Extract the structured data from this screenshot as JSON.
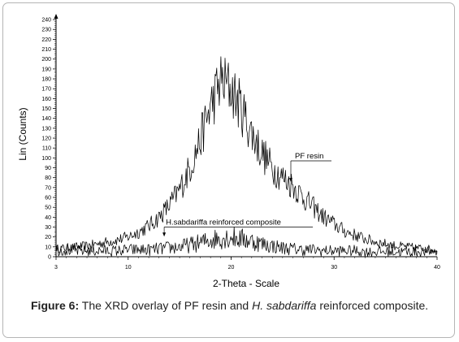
{
  "chart_data": {
    "type": "line",
    "title": "",
    "xlabel": "2-Theta - Scale",
    "ylabel": "Lin (Counts)",
    "xlim": [
      3,
      40
    ],
    "ylim": [
      0,
      245
    ],
    "x_ticks": [
      3,
      10,
      20,
      30,
      40
    ],
    "y_ticks": [
      0,
      10,
      20,
      30,
      40,
      50,
      60,
      70,
      80,
      90,
      100,
      110,
      120,
      130,
      140,
      150,
      160,
      170,
      180,
      190,
      200,
      210,
      220,
      230,
      240
    ],
    "grid": false,
    "series": [
      {
        "name": "PF resin",
        "color": "#000000",
        "x": [
          3,
          4,
          5,
          6,
          7,
          8,
          9,
          10,
          11,
          12,
          13,
          14,
          15,
          16,
          17,
          18,
          19,
          20,
          21,
          22,
          23,
          24,
          25,
          26,
          27,
          28,
          29,
          30,
          31,
          32,
          33,
          34,
          35,
          36,
          37,
          38,
          39,
          40
        ],
        "values": [
          8,
          9,
          10,
          11,
          13,
          15,
          17,
          20,
          25,
          31,
          40,
          52,
          68,
          90,
          118,
          152,
          178,
          170,
          150,
          125,
          105,
          90,
          80,
          72,
          60,
          50,
          40,
          33,
          26,
          22,
          18,
          15,
          13,
          11,
          10,
          9,
          8,
          7
        ]
      },
      {
        "name": "H.sabdariffa reinforced composite",
        "color": "#000000",
        "x": [
          3,
          4,
          5,
          6,
          7,
          8,
          9,
          10,
          11,
          12,
          13,
          14,
          15,
          16,
          17,
          18,
          19,
          20,
          21,
          22,
          23,
          24,
          25,
          26,
          27,
          28,
          29,
          30,
          31,
          32,
          33,
          34,
          35,
          36,
          37,
          38,
          39,
          40
        ],
        "values": [
          7,
          7,
          6,
          6,
          6,
          6,
          6,
          7,
          7,
          7,
          8,
          9,
          10,
          12,
          14,
          17,
          19,
          20,
          18,
          16,
          13,
          11,
          9,
          8,
          7,
          7,
          6,
          6,
          6,
          6,
          5,
          5,
          5,
          5,
          5,
          5,
          5,
          5
        ]
      }
    ],
    "annotations": [
      {
        "text": "PF resin",
        "x": 25.8,
        "y": 78
      },
      {
        "text": "H.sabdariffa reinforced composite",
        "x": 13.5,
        "y": 22
      }
    ]
  },
  "caption": {
    "label": "Figure 6:",
    "text_1": " The XRD overlay of PF resin and ",
    "species": "H. sabdariffa",
    "text_2": " reinforced composite."
  }
}
